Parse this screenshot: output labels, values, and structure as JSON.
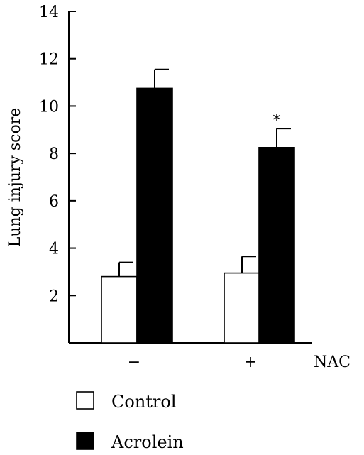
{
  "chart_data": {
    "type": "bar",
    "title": "",
    "xlabel": "NAC",
    "ylabel": "Lung injury score",
    "ylim": [
      0,
      14
    ],
    "yticks": [
      2,
      4,
      6,
      8,
      10,
      12,
      14
    ],
    "categories": [
      "−",
      "+"
    ],
    "series": [
      {
        "name": "Control",
        "color": "#ffffff",
        "values": [
          2.8,
          2.95
        ],
        "errors": [
          0.6,
          0.7
        ]
      },
      {
        "name": "Acrolein",
        "color": "#000000",
        "values": [
          10.75,
          8.25
        ],
        "errors": [
          0.8,
          0.8
        ]
      }
    ],
    "annotations": [
      {
        "text": "*",
        "category_index": 1,
        "series_index": 1
      }
    ],
    "legend": {
      "placement": "bottom-left"
    },
    "grid": false
  }
}
